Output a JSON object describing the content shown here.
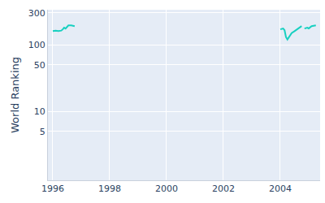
{
  "chart_data": {
    "type": "line",
    "y_label": "World Ranking",
    "x": [
      1996.0,
      1996.1,
      1996.2,
      1996.3,
      1996.35,
      1996.4,
      1996.45,
      1996.5,
      1996.55,
      1996.65,
      1996.77,
      2000.0,
      2004.0,
      2004.1,
      2004.15,
      2004.2,
      2004.25,
      2004.3,
      2004.4,
      2004.5,
      2004.6,
      2004.7,
      2004.75,
      2004.8,
      2004.85,
      2004.95,
      2005.0,
      2005.1,
      2005.25
    ],
    "values": [
      160,
      162,
      160,
      163,
      170,
      180,
      175,
      185,
      195,
      195,
      190,
      null,
      170,
      175,
      165,
      130,
      120,
      130,
      150,
      160,
      170,
      185,
      190,
      null,
      175,
      180,
      175,
      190,
      195
    ],
    "color": "#17d0c0",
    "log": "y",
    "xlim": [
      1995.83,
      2005.4
    ],
    "xticks": [
      1996,
      1998,
      2000,
      2002,
      2004
    ],
    "ylim": [
      0.92,
      335
    ],
    "yticks": [
      5,
      10,
      50,
      100,
      300
    ],
    "grid": true
  }
}
